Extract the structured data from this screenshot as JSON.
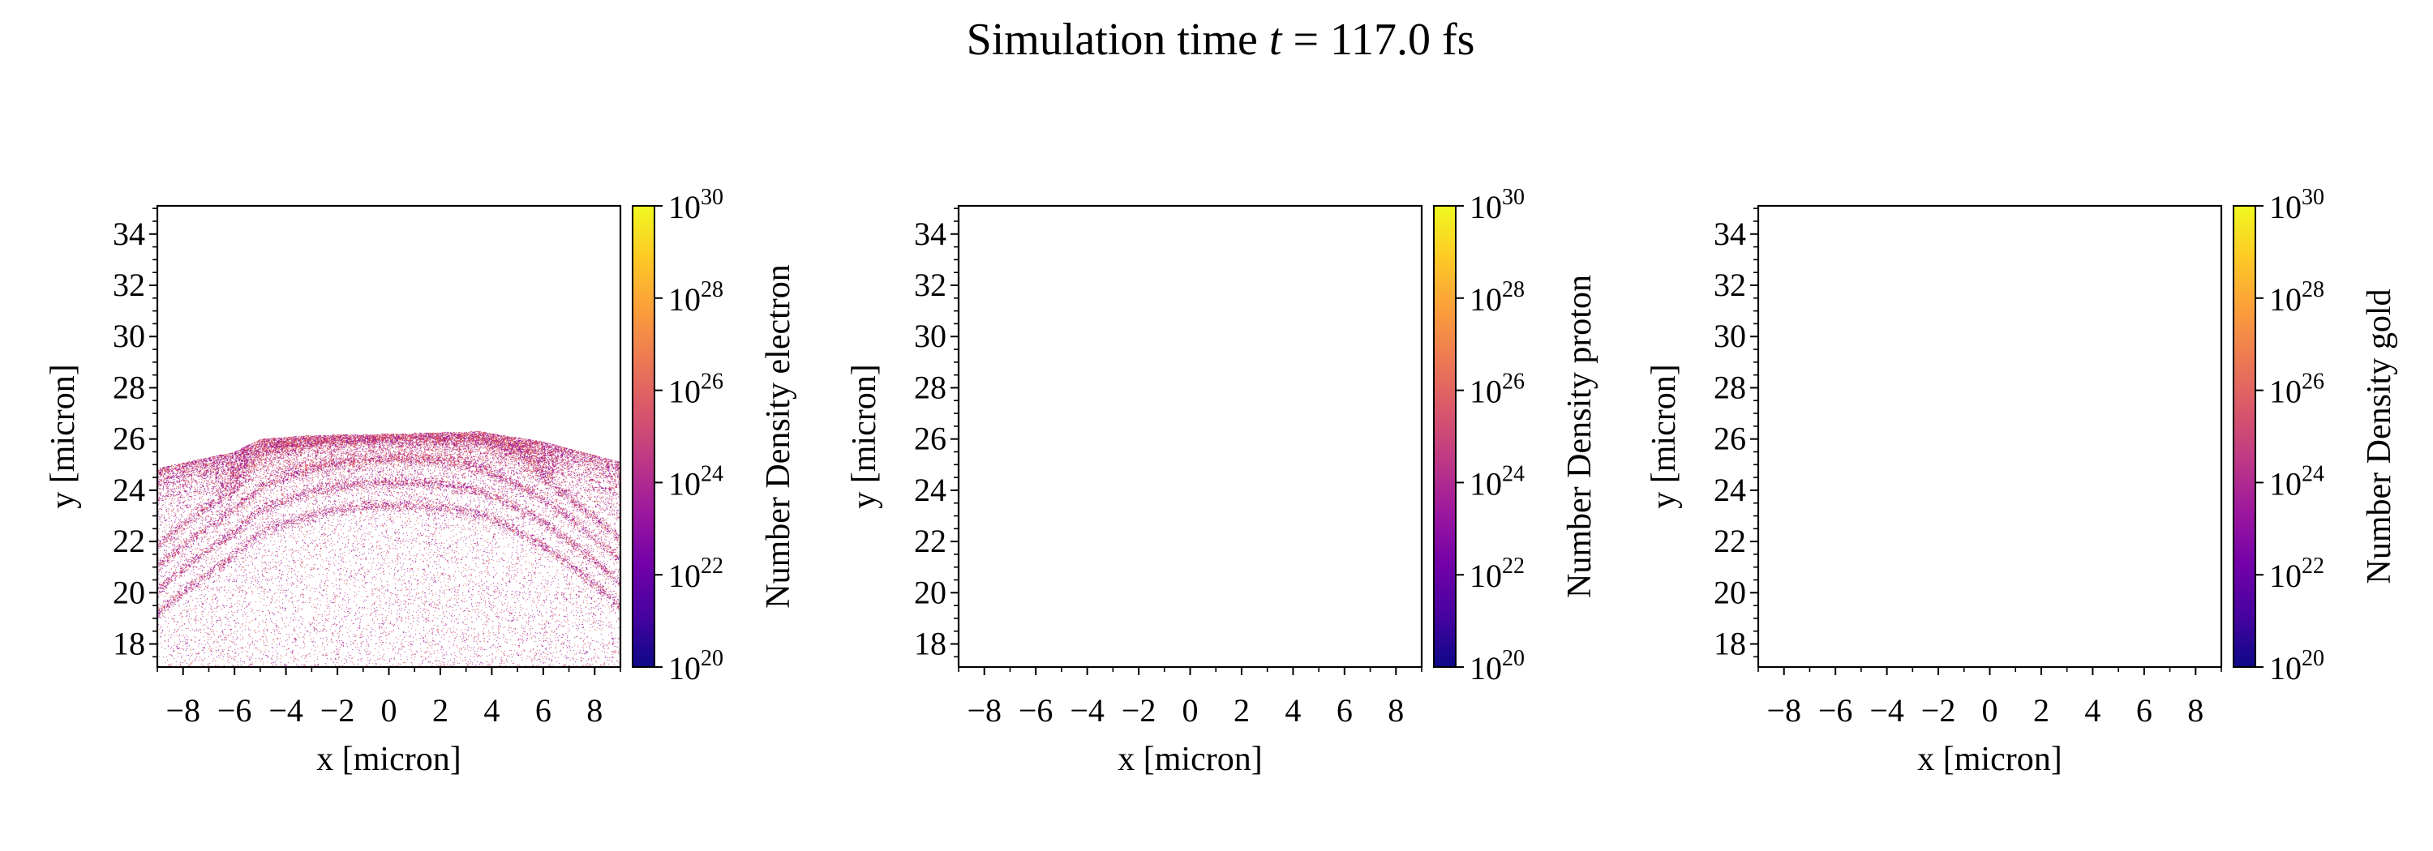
{
  "title": {
    "prefix": "Simulation time ",
    "var": "t",
    "suffix": " = 117.0 fs"
  },
  "chart_data": [
    {
      "type": "heatmap",
      "xlabel": "x [micron]",
      "ylabel": "y [micron]",
      "xlim": [
        -9,
        9
      ],
      "ylim": [
        17.1,
        35.1
      ],
      "xticks": [
        -8,
        -6,
        -4,
        -2,
        0,
        2,
        4,
        6,
        8
      ],
      "xtick_labels": [
        "−8",
        "−6",
        "−4",
        "−2",
        "0",
        "2",
        "4",
        "6",
        "8"
      ],
      "yticks": [
        18,
        20,
        22,
        24,
        26,
        28,
        30,
        32,
        34
      ],
      "ytick_labels": [
        "18",
        "20",
        "22",
        "24",
        "26",
        "28",
        "30",
        "32",
        "34"
      ],
      "colorbar": {
        "label": "Number Density electron",
        "scale": "log",
        "range": [
          1e+20,
          1e+30
        ],
        "tick_base": "10",
        "tick_exponents": [
          "20",
          "22",
          "24",
          "26",
          "28",
          "30"
        ],
        "colormap": "plasma"
      },
      "content": "particle density filling region below a curved front at y≈25–26.3 micron, dense layered bands near the front, sparse scatter down to y=17",
      "has_data": true
    },
    {
      "type": "heatmap",
      "xlabel": "x [micron]",
      "ylabel": "y [micron]",
      "xlim": [
        -9,
        9
      ],
      "ylim": [
        17.1,
        35.1
      ],
      "xticks": [
        -8,
        -6,
        -4,
        -2,
        0,
        2,
        4,
        6,
        8
      ],
      "xtick_labels": [
        "−8",
        "−6",
        "−4",
        "−2",
        "0",
        "2",
        "4",
        "6",
        "8"
      ],
      "yticks": [
        18,
        20,
        22,
        24,
        26,
        28,
        30,
        32,
        34
      ],
      "ytick_labels": [
        "18",
        "20",
        "22",
        "24",
        "26",
        "28",
        "30",
        "32",
        "34"
      ],
      "colorbar": {
        "label": "Number Density proton",
        "scale": "log",
        "range": [
          1e+20,
          1e+30
        ],
        "tick_base": "10",
        "tick_exponents": [
          "20",
          "22",
          "24",
          "26",
          "28",
          "30"
        ],
        "colormap": "plasma"
      },
      "has_data": false
    },
    {
      "type": "heatmap",
      "xlabel": "x [micron]",
      "ylabel": "y [micron]",
      "xlim": [
        -9,
        9
      ],
      "ylim": [
        17.1,
        35.1
      ],
      "xticks": [
        -8,
        -6,
        -4,
        -2,
        0,
        2,
        4,
        6,
        8
      ],
      "xtick_labels": [
        "−8",
        "−6",
        "−4",
        "−2",
        "0",
        "2",
        "4",
        "6",
        "8"
      ],
      "yticks": [
        18,
        20,
        22,
        24,
        26,
        28,
        30,
        32,
        34
      ],
      "ytick_labels": [
        "18",
        "20",
        "22",
        "24",
        "26",
        "28",
        "30",
        "32",
        "34"
      ],
      "colorbar": {
        "label": "Number Density gold",
        "scale": "log",
        "range": [
          1e+20,
          1e+30
        ],
        "tick_base": "10",
        "tick_exponents": [
          "20",
          "22",
          "24",
          "26",
          "28",
          "30"
        ],
        "colormap": "plasma"
      },
      "has_data": false
    }
  ],
  "colors": {
    "plasma": [
      "#0d0887",
      "#46039f",
      "#7201a8",
      "#9c179e",
      "#bd3786",
      "#d8576b",
      "#ed7953",
      "#fb9f3a",
      "#fdca26",
      "#f0f921"
    ]
  }
}
